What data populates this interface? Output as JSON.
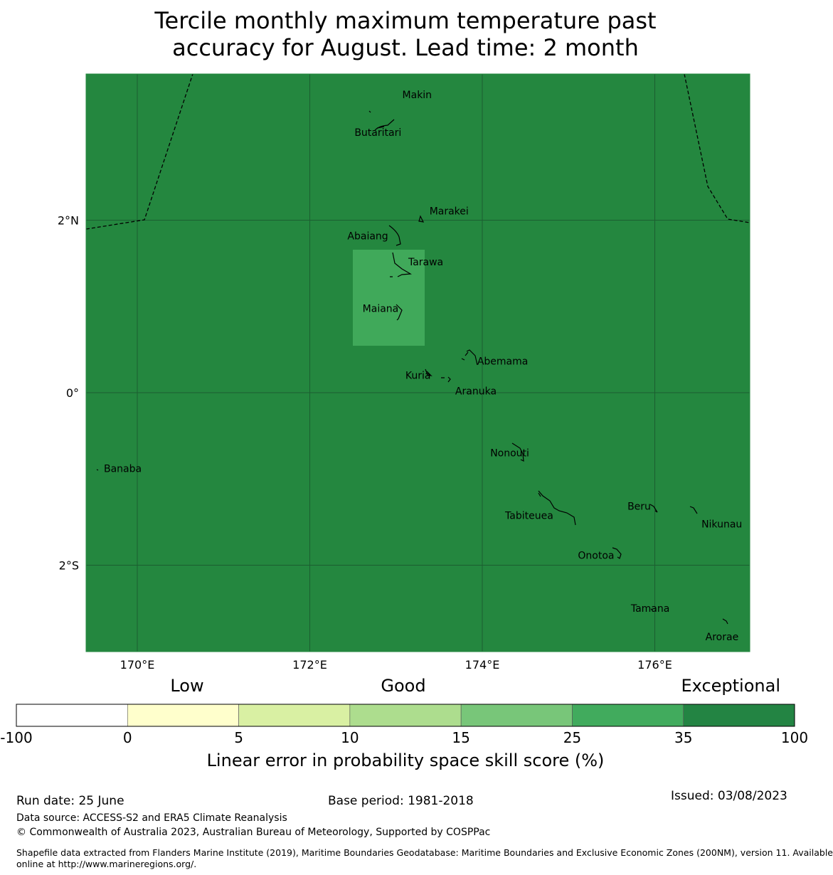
{
  "title": {
    "line1": "Tercile monthly maximum temperature past",
    "line2": "accuracy for August. Lead time: 2 month"
  },
  "map": {
    "background_color": "#24873f",
    "highlight_color": "#40a95a",
    "lon_ticks": [
      {
        "lon": 170,
        "label": "170°E"
      },
      {
        "lon": 172,
        "label": "172°E"
      },
      {
        "lon": 174,
        "label": "174°E"
      },
      {
        "lon": 176,
        "label": "176°E"
      }
    ],
    "lat_ticks": [
      {
        "lat": 2,
        "label": "2°N"
      },
      {
        "lat": 0,
        "label": "0°"
      },
      {
        "lat": -2,
        "label": "2°S"
      }
    ],
    "places": [
      {
        "name": "Makin",
        "lon": 172.99,
        "lat": 3.38
      },
      {
        "name": "Butaritari",
        "lon": 172.79,
        "lat": 3.06
      },
      {
        "name": "Marakei",
        "lon": 173.28,
        "lat": 2.01
      },
      {
        "name": "Abaiang",
        "lon": 172.92,
        "lat": 1.85
      },
      {
        "name": "Tarawa",
        "lon": 173.01,
        "lat": 1.42
      },
      {
        "name": "Maiana",
        "lon": 173.01,
        "lat": 0.92
      },
      {
        "name": "Abemama",
        "lon": 173.85,
        "lat": 0.39
      },
      {
        "name": "Kuria",
        "lon": 173.42,
        "lat": 0.22
      },
      {
        "name": "Aranuka",
        "lon": 173.62,
        "lat": 0.16
      },
      {
        "name": "Nonouti",
        "lon": 174.45,
        "lat": -0.64
      },
      {
        "name": "Banaba",
        "lon": 169.53,
        "lat": -0.88
      },
      {
        "name": "Beru",
        "lon": 176.0,
        "lat": -1.33
      },
      {
        "name": "Nikunau",
        "lon": 176.45,
        "lat": -1.35
      },
      {
        "name": "Tabiteuea",
        "lon": 174.75,
        "lat": -1.3
      },
      {
        "name": "Onotoa",
        "lon": 175.55,
        "lat": -1.8
      },
      {
        "name": "Tamana",
        "lon": 175.98,
        "lat": -2.5
      },
      {
        "name": "Arorae",
        "lon": 176.82,
        "lat": -2.64
      }
    ]
  },
  "colorbar": {
    "category_labels": [
      "Low",
      "Good",
      "Exceptional"
    ],
    "bins": [
      {
        "from": "-100",
        "color": "#ffffff"
      },
      {
        "from": "0",
        "color": "#ffffcc"
      },
      {
        "from": "5",
        "color": "#d9f0a3"
      },
      {
        "from": "10",
        "color": "#addd8e"
      },
      {
        "from": "15",
        "color": "#78c679"
      },
      {
        "from": "25",
        "color": "#41ab5d"
      },
      {
        "from": "35",
        "color": "#238443"
      }
    ],
    "tick_labels": [
      "-100",
      "0",
      "5",
      "10",
      "15",
      "25",
      "35",
      "100"
    ],
    "title": "Linear error in probability space skill score (%)"
  },
  "footer": {
    "run_date": "Run date: 25 June",
    "base_period": "Base period: 1981-2018",
    "issued": "Issued: 03/08/2023",
    "data_source": "Data source: ACCESS-S2 and ERA5 Climate Reanalysis",
    "copyright": "© Commonwealth of Australia 2023, Australian Bureau of Meteorology, Supported by COSPPac",
    "shapefile_line1": "Shapefile data extracted from Flanders Marine Institute (2019), Maritime Boundaries Geodatabase: Maritime Boundaries and Exclusive Economic Zones (200NM), version 11. Available",
    "shapefile_line2": "online at http://www.marineregions.org/."
  }
}
